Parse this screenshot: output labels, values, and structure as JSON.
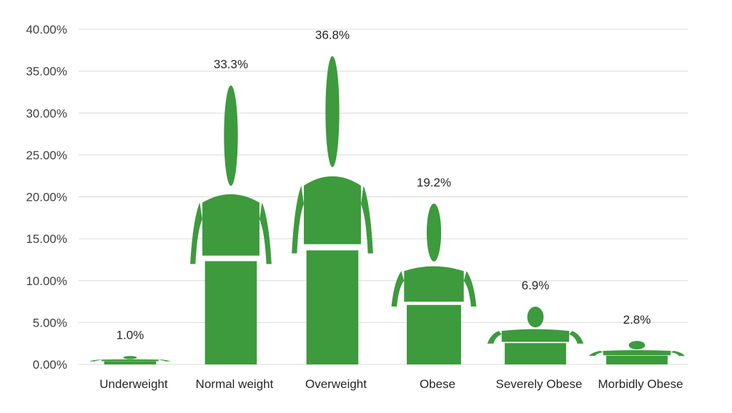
{
  "chart_data": {
    "type": "bar",
    "title": "",
    "xlabel": "",
    "ylabel": "",
    "ylim": [
      0,
      0.4
    ],
    "y_ticks": [
      "0.00%",
      "5.00%",
      "10.00%",
      "15.00%",
      "20.00%",
      "25.00%",
      "30.00%",
      "35.00%",
      "40.00%"
    ],
    "grid": true,
    "legend": "none",
    "bar_style": "human pictogram",
    "bar_color": "#3d9a3d",
    "categories": [
      "Underweight",
      "Normal weight",
      "Overweight",
      "Obese",
      "Severely Obese",
      "Morbidly Obese"
    ],
    "values": [
      0.01,
      0.333,
      0.368,
      0.192,
      0.069,
      0.028
    ],
    "data_labels": [
      "1.0%",
      "33.3%",
      "36.8%",
      "19.2%",
      "6.9%",
      "2.8%"
    ]
  }
}
